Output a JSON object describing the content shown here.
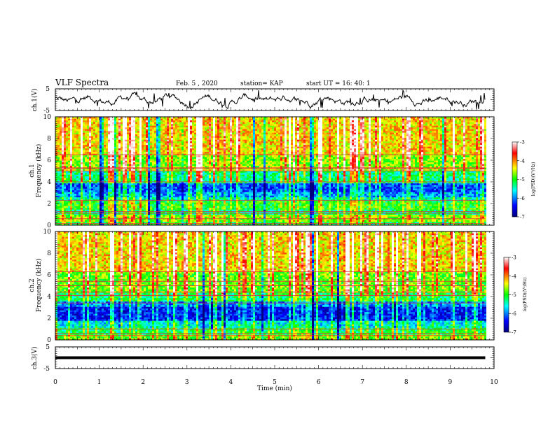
{
  "header": {
    "title": "VLF Spectra",
    "date": "Feb. 5 , 2020",
    "station": "station= KAP",
    "start": "start  UT  =   16: 40: 1"
  },
  "chart_data": [
    {
      "type": "line",
      "name": "ch1-waveform",
      "ylabel": "ch.1(V)",
      "yticks": [
        "5",
        "-5"
      ],
      "ylim": [
        -5,
        5
      ],
      "xlim": [
        0,
        10
      ],
      "x_end": 9.8,
      "description_color": "#000000"
    },
    {
      "type": "heatmap",
      "name": "ch1-spectrogram",
      "ylabel": "ch.1",
      "ylabel2": "Frequency  (kHz)",
      "xlim": [
        0,
        10
      ],
      "ylim": [
        0,
        10
      ],
      "yticks": [
        "0",
        "2",
        "4",
        "6",
        "8",
        "10"
      ],
      "x_end": 9.8,
      "colorbar": {
        "ticks": [
          "-3",
          "-4",
          "-5",
          "-6",
          "-7"
        ],
        "label": "log(PSD)(V²/Hz)",
        "range": [
          -7,
          -3
        ]
      },
      "bands": [
        {
          "f0": 0.0,
          "f1": 0.4,
          "level": -5.1
        },
        {
          "f0": 0.4,
          "f1": 1.0,
          "level": -4.7
        },
        {
          "f0": 1.0,
          "f1": 1.5,
          "level": -5.3
        },
        {
          "f0": 1.5,
          "f1": 2.2,
          "level": -5.0
        },
        {
          "f0": 2.2,
          "f1": 2.6,
          "level": -5.5
        },
        {
          "f0": 2.6,
          "f1": 3.0,
          "level": -5.9
        },
        {
          "f0": 3.0,
          "f1": 3.8,
          "level": -6.2
        },
        {
          "f0": 3.8,
          "f1": 5.0,
          "level": -5.3
        },
        {
          "f0": 5.0,
          "f1": 5.4,
          "level": -4.6
        },
        {
          "f0": 5.4,
          "f1": 6.5,
          "level": -4.7
        },
        {
          "f0": 6.5,
          "f1": 10.0,
          "level": -4.3
        }
      ],
      "lines_khz": [
        0.15,
        0.6,
        1.1,
        1.25,
        2.3,
        4.0,
        5.0,
        5.2,
        5.3,
        6.5
      ],
      "sferic_density": 0.35
    },
    {
      "type": "heatmap",
      "name": "ch2-spectrogram",
      "ylabel": "ch.2",
      "ylabel2": "Frequency  (kHz)",
      "xlim": [
        0,
        10
      ],
      "ylim": [
        0,
        10
      ],
      "yticks": [
        "0",
        "2",
        "4",
        "6",
        "8",
        "10"
      ],
      "x_end": 9.8,
      "colorbar": {
        "ticks": [
          "-3",
          "-4",
          "-5",
          "-6",
          "-7"
        ],
        "label": "log(PSD)(V²/Hz)",
        "range": [
          -7,
          -3
        ]
      },
      "bands": [
        {
          "f0": 0.0,
          "f1": 0.5,
          "level": -4.8
        },
        {
          "f0": 0.5,
          "f1": 1.2,
          "level": -5.2
        },
        {
          "f0": 1.2,
          "f1": 1.8,
          "level": -5.6
        },
        {
          "f0": 1.8,
          "f1": 3.0,
          "level": -6.4
        },
        {
          "f0": 3.0,
          "f1": 3.6,
          "level": -6.0
        },
        {
          "f0": 3.6,
          "f1": 4.4,
          "level": -5.2
        },
        {
          "f0": 4.4,
          "f1": 6.3,
          "level": -4.8
        },
        {
          "f0": 6.3,
          "f1": 10.0,
          "level": -4.3
        }
      ],
      "lines_khz": [
        0.4,
        0.6,
        1.0,
        3.4,
        4.1,
        4.4,
        5.0,
        5.4,
        6.3
      ],
      "sferic_density": 0.35
    },
    {
      "type": "line",
      "name": "ch3-waveform",
      "ylabel": "ch.3(V)",
      "yticks": [
        "5",
        "-5"
      ],
      "ylim": [
        -5,
        5
      ],
      "xlim": [
        0,
        10
      ],
      "x_end": 9.8,
      "flat_value": 0
    }
  ],
  "xaxis": {
    "label": "Time  (min)",
    "ticks": [
      "0",
      "1",
      "2",
      "3",
      "4",
      "5",
      "6",
      "7",
      "8",
      "9",
      "10"
    ]
  }
}
